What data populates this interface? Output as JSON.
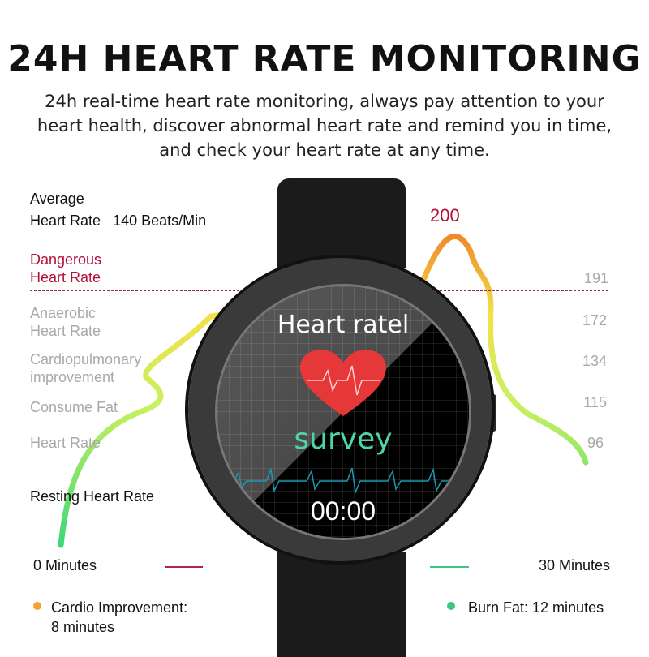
{
  "title": "24H HEART RATE MONITORING",
  "subtitle": "24h real-time heart rate monitoring, always pay attention to your heart health, discover abnormal heart rate and remind you in time, and check your heart rate at any time.",
  "average": {
    "label_line1": "Average",
    "label_line2": "Heart Rate",
    "value": "140 Beats/Min"
  },
  "zones": [
    {
      "line1": "Dangerous",
      "line2": "Heart Rate",
      "value": "191"
    },
    {
      "line1": "Anaerobic",
      "line2": "Heart Rate",
      "value": "172"
    },
    {
      "line1": "Cardiopulmonary",
      "line2": "improvement",
      "value": "134"
    },
    {
      "line1": "Consume Fat",
      "line2": "",
      "value": "115"
    },
    {
      "line1": "Heart Rate",
      "line2": "",
      "value": "96"
    }
  ],
  "peak_value": "200",
  "resting": "Resting Heart Rate",
  "time_start": "0 Minutes",
  "time_end": "30 Minutes",
  "legend": {
    "cardio": "Cardio Improvement:",
    "cardio_value": "8 minutes",
    "burn": "Burn Fat: 12 minutes"
  },
  "watch": {
    "title": "Heart ratel",
    "subtitle": "survey",
    "time": "00:00"
  },
  "colors": {
    "danger": "#b0103a",
    "survey": "#4fd6a8",
    "cardio_dot": "#f5a031",
    "burn_dot": "#3ec97a"
  }
}
